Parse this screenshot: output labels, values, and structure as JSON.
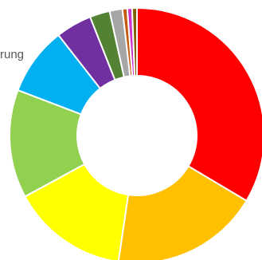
{
  "chart_data": {
    "type": "pie",
    "variant": "donut",
    "start_angle_deg": 0,
    "direction": "clockwise",
    "slices": [
      {
        "value": 33.0,
        "color": "#FF0000"
      },
      {
        "value": 18.5,
        "color": "#FFC000"
      },
      {
        "value": 14.5,
        "color": "#FFFF00"
      },
      {
        "value": 13.5,
        "color": "#92D050"
      },
      {
        "value": 8.5,
        "color": "#00B0F0"
      },
      {
        "value": 4.5,
        "color": "#7030A0"
      },
      {
        "value": 2.5,
        "color": "#548235"
      },
      {
        "value": 1.6,
        "color": "#A6A6A6"
      },
      {
        "value": 0.6,
        "color": "#C55A11"
      },
      {
        "value": 0.6,
        "color": "#CC33CC"
      },
      {
        "value": 0.6,
        "color": "#7F6000"
      }
    ],
    "legend_fragment": "rung",
    "slice_border_color": "#FFFFFF",
    "text_color": "#595959"
  }
}
